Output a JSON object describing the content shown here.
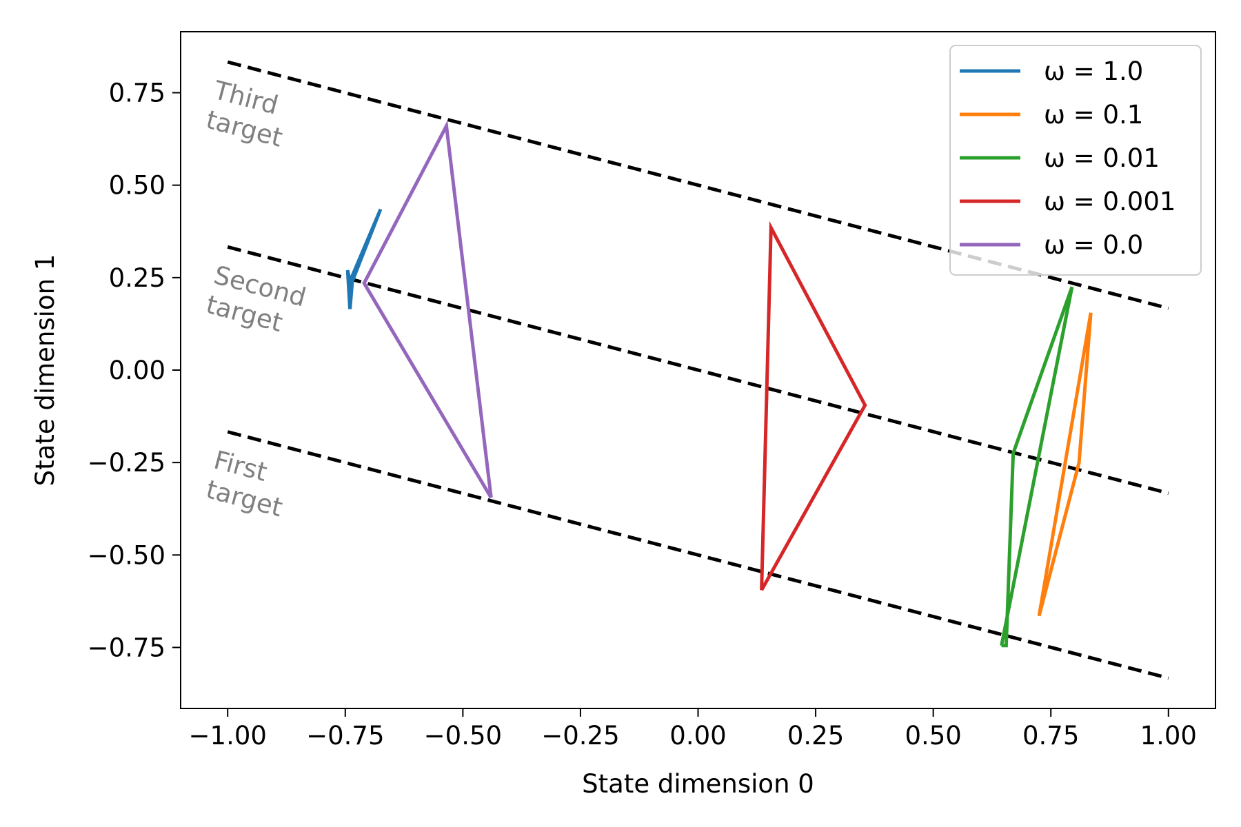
{
  "chart_data": {
    "type": "line",
    "xlabel": "State dimension 0",
    "ylabel": "State dimension 1",
    "xlim": [
      -1.1,
      1.1
    ],
    "ylim": [
      -0.915,
      0.915
    ],
    "xticks": [
      -1.0,
      -0.75,
      -0.5,
      -0.25,
      0.0,
      0.25,
      0.5,
      0.75,
      1.0
    ],
    "xtick_labels": [
      "−1.00",
      "−0.75",
      "−0.50",
      "−0.25",
      "0.00",
      "0.25",
      "0.50",
      "0.75",
      "1.00"
    ],
    "yticks": [
      -0.75,
      -0.5,
      -0.25,
      0.0,
      0.25,
      0.5,
      0.75
    ],
    "ytick_labels": [
      "−0.75",
      "−0.50",
      "−0.25",
      "0.00",
      "0.25",
      "0.50",
      "0.75"
    ],
    "grid": false,
    "legend_position": "top-right",
    "target_lines": [
      {
        "label": "First\ntarget",
        "x": [
          -1.0,
          1.0
        ],
        "y": [
          -0.167,
          -0.833
        ],
        "color": "#000000",
        "style": "dashed"
      },
      {
        "label": "Second\ntarget",
        "x": [
          -1.0,
          1.0
        ],
        "y": [
          0.333,
          -0.333
        ],
        "color": "#000000",
        "style": "dashed"
      },
      {
        "label": "Third\ntarget",
        "x": [
          -1.0,
          1.0
        ],
        "y": [
          0.833,
          0.167
        ],
        "color": "#000000",
        "style": "dashed"
      }
    ],
    "series": [
      {
        "name": "ω = 1.0",
        "color": "#1f77b4",
        "x": [
          -0.74,
          -0.745,
          -0.74,
          -0.675,
          -0.735,
          -0.74
        ],
        "y": [
          0.165,
          0.27,
          0.24,
          0.435,
          0.24,
          0.165
        ]
      },
      {
        "name": "ω = 0.1",
        "color": "#ff7f0e",
        "x": [
          0.725,
          0.835,
          0.81,
          0.725
        ],
        "y": [
          -0.665,
          0.155,
          -0.25,
          -0.665
        ]
      },
      {
        "name": "ω = 0.01",
        "color": "#2ca02c",
        "x": [
          0.645,
          0.795,
          0.67,
          0.655,
          0.645
        ],
        "y": [
          -0.745,
          0.225,
          -0.225,
          -0.745,
          -0.745
        ]
      },
      {
        "name": "ω = 0.001",
        "color": "#d62728",
        "x": [
          0.135,
          0.155,
          0.355,
          0.135
        ],
        "y": [
          -0.595,
          0.385,
          -0.095,
          -0.595
        ]
      },
      {
        "name": "ω = 0.0",
        "color": "#9467bd",
        "x": [
          -0.44,
          -0.535,
          -0.71,
          -0.44
        ],
        "y": [
          -0.345,
          0.66,
          0.235,
          -0.345
        ]
      }
    ]
  }
}
